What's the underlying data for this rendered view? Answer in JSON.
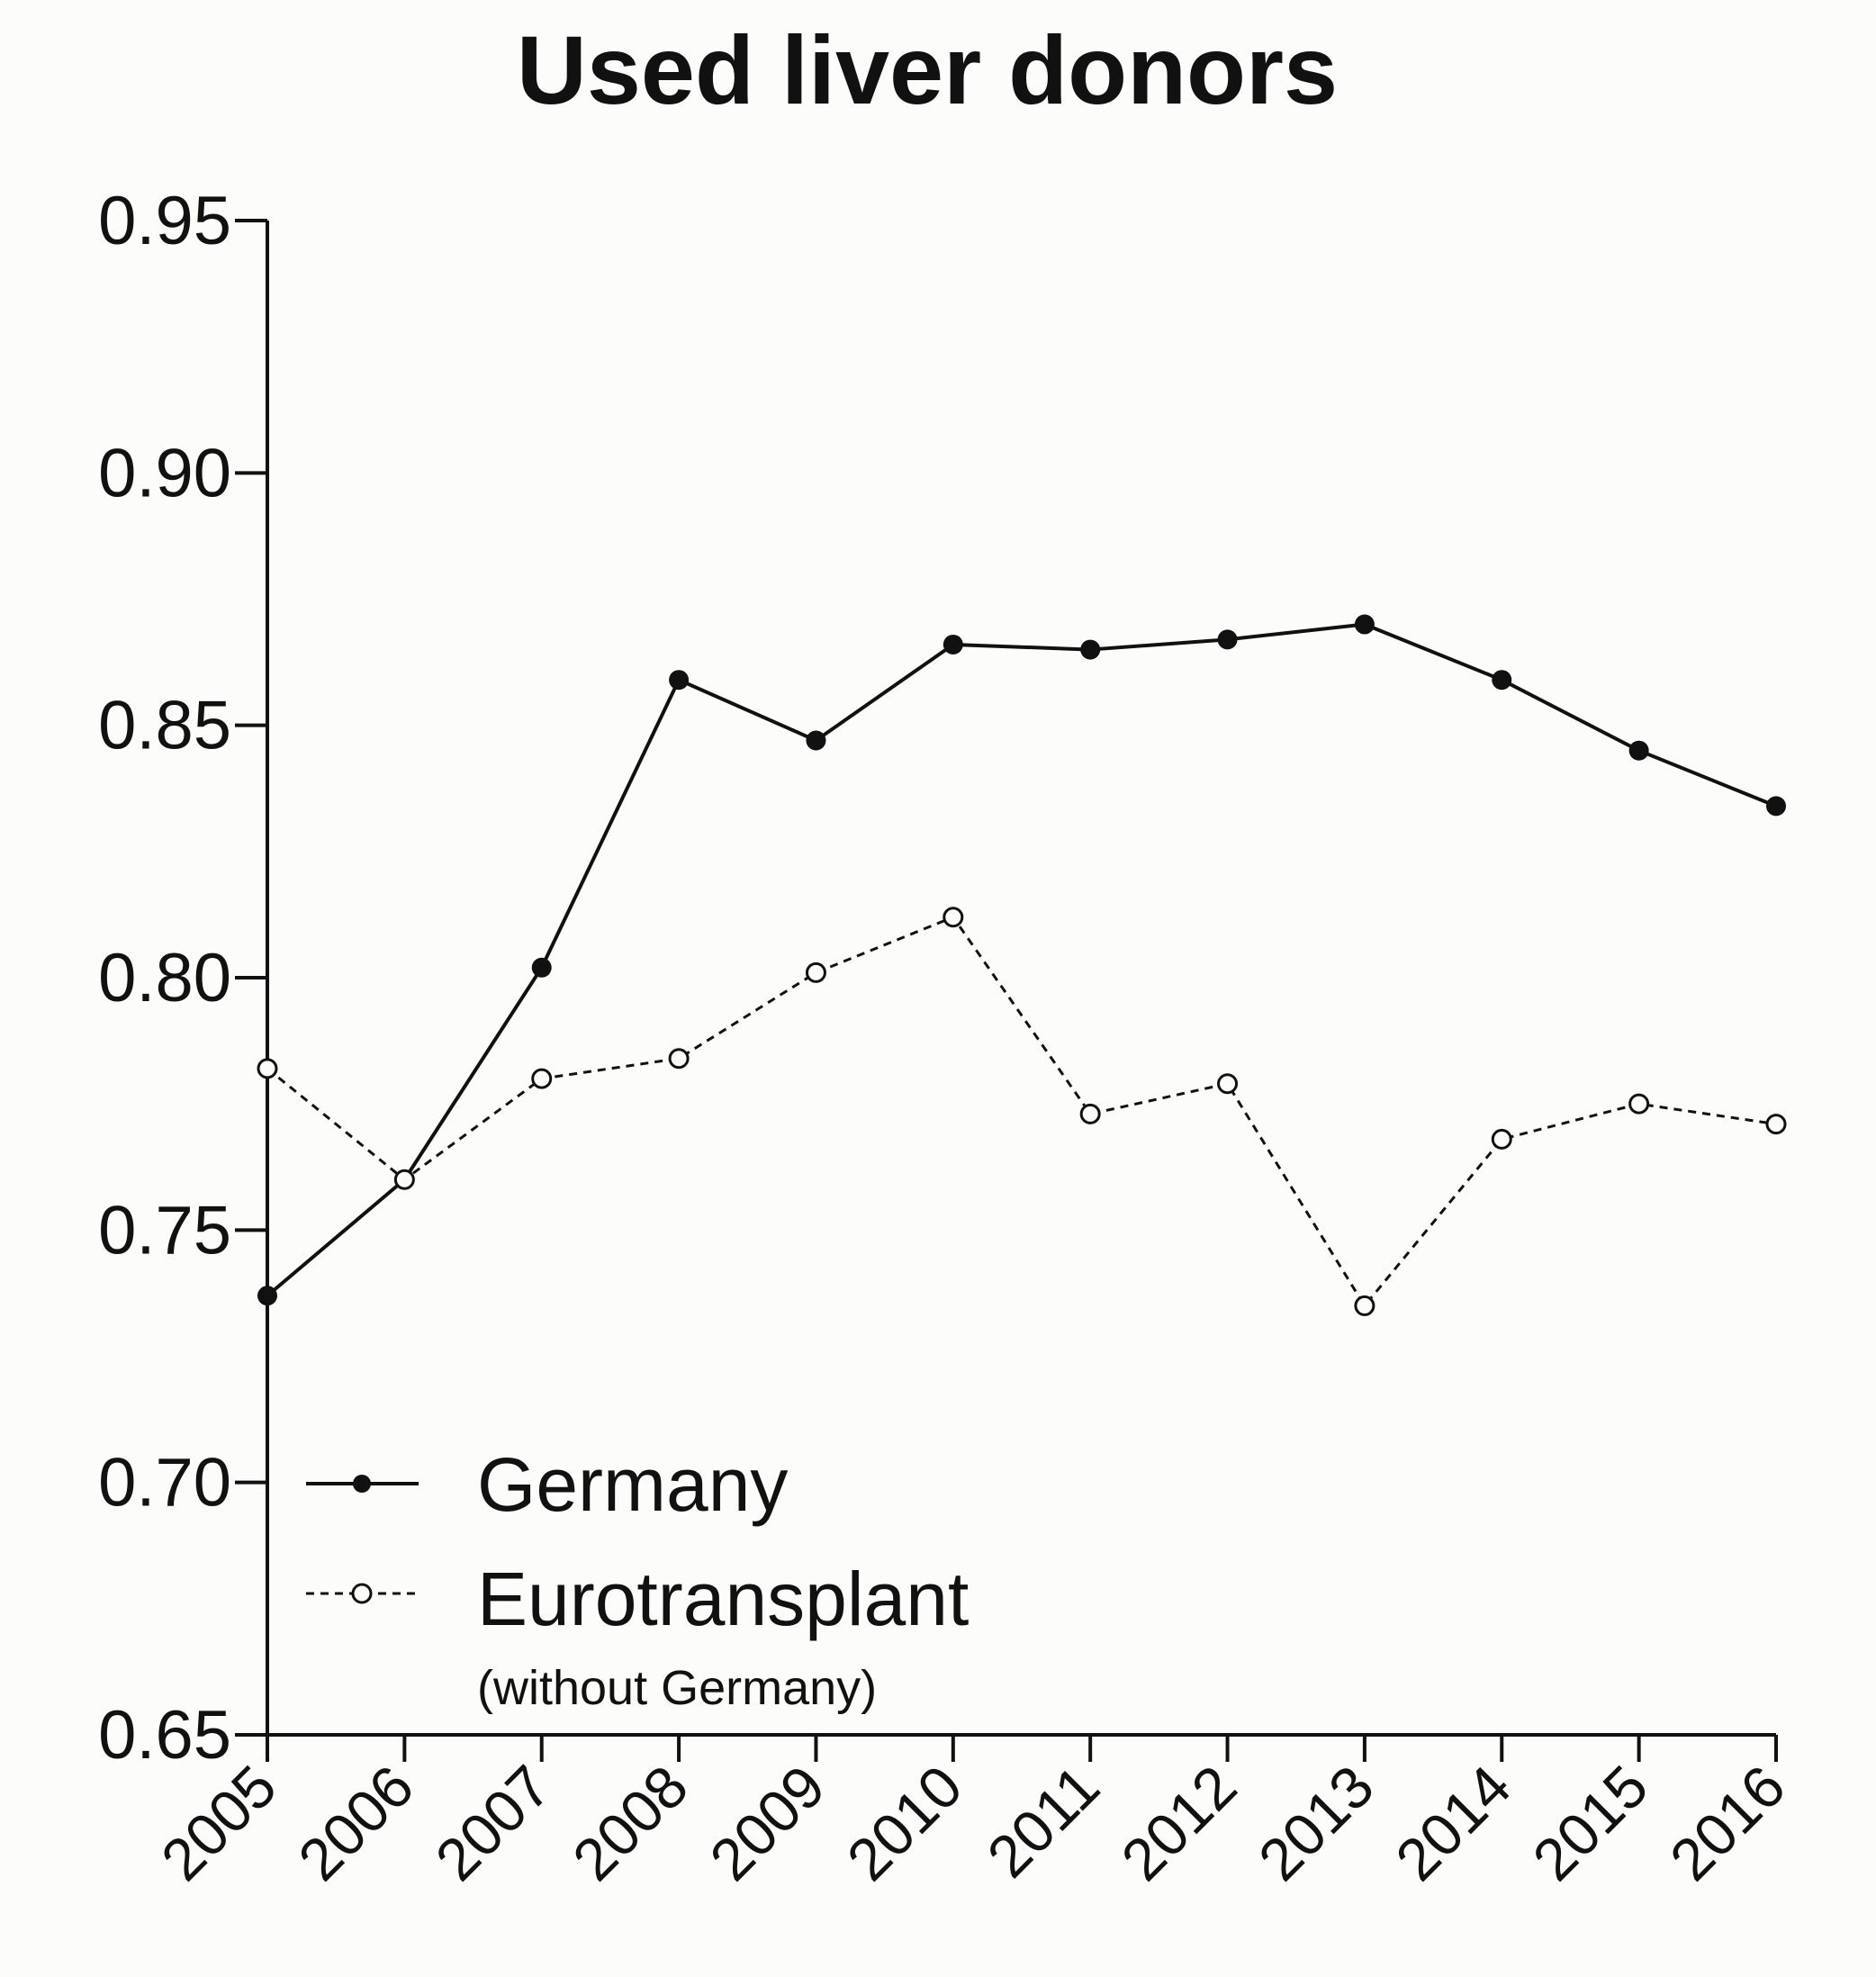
{
  "chart_data": {
    "type": "line",
    "title": "Used liver donors",
    "xlabel": "",
    "ylabel": "",
    "x": [
      "2005",
      "2006",
      "2007",
      "2008",
      "2009",
      "2010",
      "2011",
      "2012",
      "2013",
      "2014",
      "2015",
      "2016"
    ],
    "ylim": [
      0.65,
      0.95
    ],
    "yticks": [
      "0.95",
      "0.90",
      "0.85",
      "0.80",
      "0.75",
      "0.70",
      "0.65"
    ],
    "grid": false,
    "legend_position": "bottom-left",
    "series": [
      {
        "name": "Germany",
        "style": "solid line, filled circle markers",
        "values": [
          0.737,
          0.76,
          0.802,
          0.859,
          0.847,
          0.866,
          0.865,
          0.867,
          0.87,
          0.859,
          0.845,
          0.834
        ]
      },
      {
        "name": "Eurotransplant",
        "subtitle": "(without Germany)",
        "style": "dashed line, open circle markers",
        "values": [
          0.782,
          0.76,
          0.78,
          0.784,
          0.801,
          0.812,
          0.773,
          0.779,
          0.735,
          0.768,
          0.775,
          0.771
        ]
      }
    ],
    "colors": {
      "line": "#111111",
      "background": "#fcfcfb"
    }
  }
}
